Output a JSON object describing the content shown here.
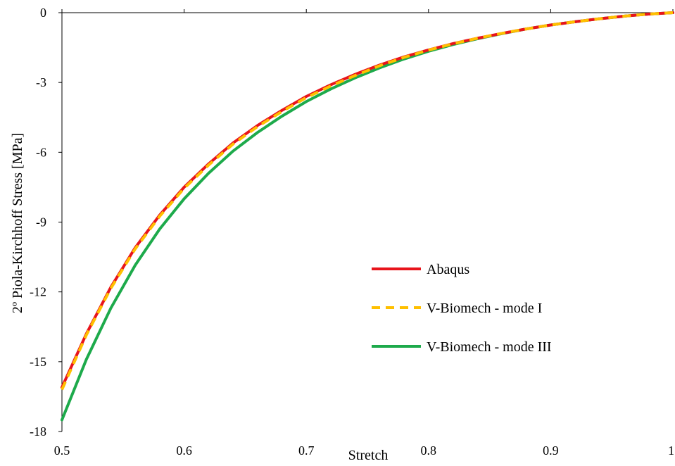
{
  "chart_data": {
    "type": "line",
    "title": "",
    "xlabel": "Stretch",
    "ylabel": "2º Piola-Kirchhoff Stress [MPa]",
    "xlim": [
      0.5,
      1.0
    ],
    "ylim": [
      -18,
      0
    ],
    "x_ticks": [
      "0.5",
      "0.6",
      "0.7",
      "0.8",
      "0.9",
      "1"
    ],
    "y_ticks": [
      "0",
      "-3",
      "-6",
      "-9",
      "-12",
      "-15",
      "-18"
    ],
    "grid": false,
    "legend_position": "center-right",
    "x": [
      0.5,
      0.52,
      0.54,
      0.56,
      0.58,
      0.6,
      0.62,
      0.64,
      0.66,
      0.68,
      0.7,
      0.72,
      0.74,
      0.76,
      0.78,
      0.8,
      0.82,
      0.84,
      0.86,
      0.88,
      0.9,
      0.92,
      0.94,
      0.96,
      0.98,
      1.0
    ],
    "series": [
      {
        "name": "Abaqus",
        "color": "#E8141B",
        "dash": "solid",
        "values": [
          -16.1,
          -13.8,
          -11.8,
          -10.1,
          -8.7,
          -7.5,
          -6.5,
          -5.6,
          -4.85,
          -4.2,
          -3.6,
          -3.1,
          -2.65,
          -2.25,
          -1.9,
          -1.6,
          -1.33,
          -1.1,
          -0.89,
          -0.7,
          -0.53,
          -0.39,
          -0.26,
          -0.15,
          -0.06,
          0.0
        ]
      },
      {
        "name": "V-Biomech - mode I",
        "color": "#FFC000",
        "dash": "dashed",
        "values": [
          -16.2,
          -13.85,
          -11.85,
          -10.15,
          -8.75,
          -7.55,
          -6.55,
          -5.65,
          -4.9,
          -4.25,
          -3.65,
          -3.15,
          -2.7,
          -2.28,
          -1.92,
          -1.61,
          -1.34,
          -1.1,
          -0.89,
          -0.7,
          -0.53,
          -0.39,
          -0.26,
          -0.15,
          -0.06,
          0.0
        ]
      },
      {
        "name": "V-Biomech - mode III",
        "color": "#1DAA4B",
        "dash": "solid",
        "values": [
          -17.5,
          -14.9,
          -12.7,
          -10.85,
          -9.3,
          -8.0,
          -6.9,
          -5.95,
          -5.15,
          -4.45,
          -3.82,
          -3.28,
          -2.8,
          -2.37,
          -1.99,
          -1.66,
          -1.37,
          -1.12,
          -0.9,
          -0.7,
          -0.53,
          -0.39,
          -0.26,
          -0.15,
          -0.06,
          0.0
        ]
      }
    ]
  }
}
